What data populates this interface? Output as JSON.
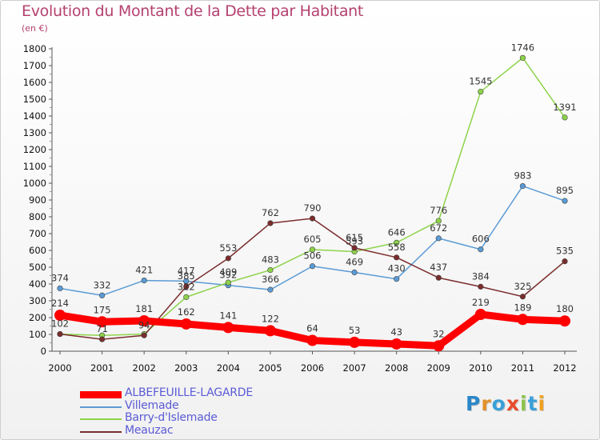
{
  "header": {
    "title": "Evolution du Montant de la Dette par Habitant",
    "subtitle": "(en €)"
  },
  "logo": {
    "letters": [
      "P",
      "r",
      "o",
      "x",
      "i",
      "t",
      "i"
    ],
    "colors": [
      "#2a86c8",
      "#e2902a",
      "#3aa0d8",
      "#e94b2a",
      "#8bc34a",
      "#3aa0d8",
      "#f0a020"
    ]
  },
  "chart_data": {
    "type": "line",
    "title": "Evolution du Montant de la Dette par Habitant",
    "subtitle": "(en €)",
    "x": [
      "2000",
      "2001",
      "2002",
      "2003",
      "2004",
      "2005",
      "2006",
      "2007",
      "2008",
      "2009",
      "2010",
      "2011",
      "2012"
    ],
    "ylim": [
      0,
      1800
    ],
    "yticks": [
      0,
      100,
      200,
      300,
      400,
      500,
      600,
      700,
      800,
      900,
      1000,
      1100,
      1200,
      1300,
      1400,
      1500,
      1600,
      1700,
      1800
    ],
    "grid": false,
    "legend_position": "bottom-left",
    "series": [
      {
        "name": "ALBEFEUILLE-LAGARDE",
        "color": "#ff0000",
        "width": "thick",
        "values": [
          214,
          175,
          181,
          162,
          141,
          122,
          64,
          53,
          43,
          32,
          219,
          189,
          180
        ]
      },
      {
        "name": "Villemade",
        "color": "#5b9bd5",
        "width": "thin",
        "values": [
          374,
          332,
          421,
          417,
          392,
          366,
          506,
          469,
          430,
          672,
          606,
          983,
          895
        ]
      },
      {
        "name": "Barry-d'Islemade",
        "color": "#8dd34a",
        "width": "thin",
        "values": [
          102,
          94,
          102,
          322,
          409,
          483,
          605,
          593,
          646,
          776,
          1545,
          1746,
          1391
        ]
      },
      {
        "name": "Meauzac",
        "color": "#7b2c2c",
        "width": "thin",
        "values": [
          102,
          71,
          94,
          385,
          553,
          762,
          790,
          615,
          558,
          437,
          384,
          325,
          535
        ]
      }
    ],
    "labels": [
      {
        "series": 0,
        "values": [
          "214",
          "175",
          "181",
          "162",
          "141",
          "122",
          "64",
          "53",
          "43",
          "32",
          "219",
          "189",
          "180"
        ]
      },
      {
        "series": 1,
        "values": [
          "374",
          "332",
          "421",
          "417",
          "392",
          "366",
          "506",
          "469",
          "430",
          "672",
          "606",
          "983",
          "895"
        ]
      },
      {
        "series": 2,
        "values": [
          "102",
          "",
          "",
          "322",
          "409",
          "483",
          "605",
          "593",
          "646",
          "776",
          "1545",
          "1746",
          "1391"
        ]
      },
      {
        "series": 3,
        "values": [
          "",
          "71",
          "94",
          "385",
          "553",
          "762",
          "790",
          "615",
          "558",
          "437",
          "384",
          "325",
          "535"
        ]
      }
    ]
  }
}
